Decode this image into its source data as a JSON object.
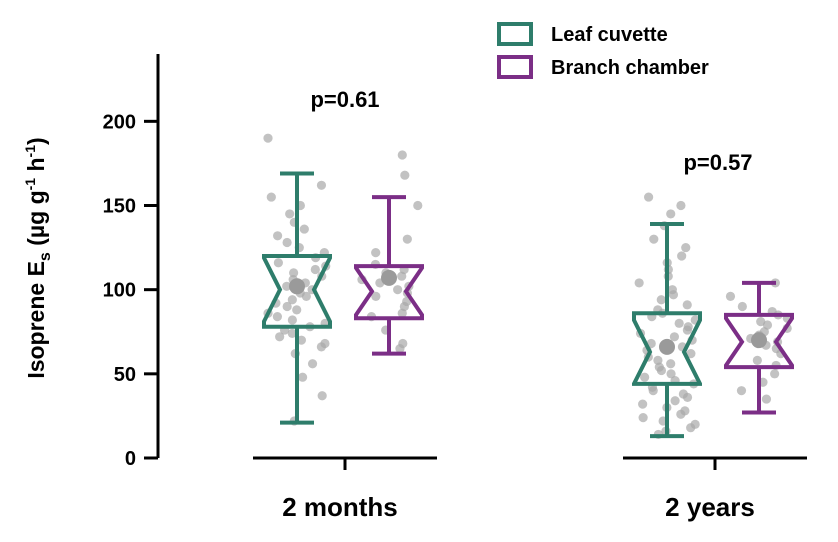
{
  "chart_data": {
    "type": "box",
    "ylabel": {
      "main": "Isoprene E",
      "sub": "s",
      "unit_open": " (µg g",
      "sup1": "-1",
      "unit_mid": " h",
      "sup2": "-1",
      "unit_close": ")"
    },
    "ylim": [
      0,
      240
    ],
    "yticks": [
      0,
      50,
      100,
      150,
      200
    ],
    "categories": [
      "2 months",
      "2 years"
    ],
    "pvalues": [
      "p=0.61",
      "p=0.57"
    ],
    "series": [
      {
        "name": "Leaf cuvette",
        "color": "#2e7d6b",
        "boxes": [
          {
            "min": 21,
            "q1": 78,
            "median": 100,
            "q3": 120,
            "max": 169,
            "mean": 102,
            "points": [
              190,
              162,
              155,
              150,
              145,
              140,
              136,
              132,
              128,
              125,
              122,
              119,
              116,
              114,
              112,
              110,
              108,
              106,
              104,
              102,
              100,
              98,
              96,
              94,
              92,
              90,
              88,
              86,
              84,
              82,
              80,
              78,
              76,
              74,
              72,
              70,
              68,
              66,
              62,
              56,
              48,
              37,
              22
            ]
          },
          {
            "min": 13,
            "q1": 44,
            "median": 63,
            "q3": 86,
            "max": 139,
            "mean": 66,
            "points": [
              155,
              150,
              145,
              138,
              130,
              125,
              120,
              116,
              112,
              108,
              104,
              100,
              97,
              94,
              91,
              88,
              86,
              84,
              82,
              80,
              78,
              76,
              74,
              72,
              70,
              68,
              66,
              64,
              62,
              60,
              58,
              56,
              54,
              52,
              50,
              48,
              46,
              44,
              42,
              40,
              38,
              36,
              34,
              32,
              30,
              28,
              26,
              24,
              22,
              20,
              18,
              16,
              14
            ]
          }
        ]
      },
      {
        "name": "Branch chamber",
        "color": "#7b2e86",
        "boxes": [
          {
            "min": 62,
            "q1": 83,
            "median": 99,
            "q3": 114,
            "max": 155,
            "mean": 107,
            "points": [
              180,
              168,
              150,
              130,
              122,
              115,
              112,
              110,
              108,
              106,
              104,
              102,
              100,
              98,
              96,
              93,
              90,
              86,
              84,
              76,
              68,
              65
            ]
          },
          {
            "min": 27,
            "q1": 54,
            "median": 69,
            "q3": 85,
            "max": 104,
            "mean": 70,
            "points": [
              104,
              96,
              90,
              87,
              85,
              83,
              81,
              79,
              77,
              75,
              73,
              71,
              69,
              67,
              65,
              62,
              58,
              55,
              50,
              45,
              40,
              35
            ]
          }
        ]
      }
    ],
    "legend_position": "top-right"
  }
}
